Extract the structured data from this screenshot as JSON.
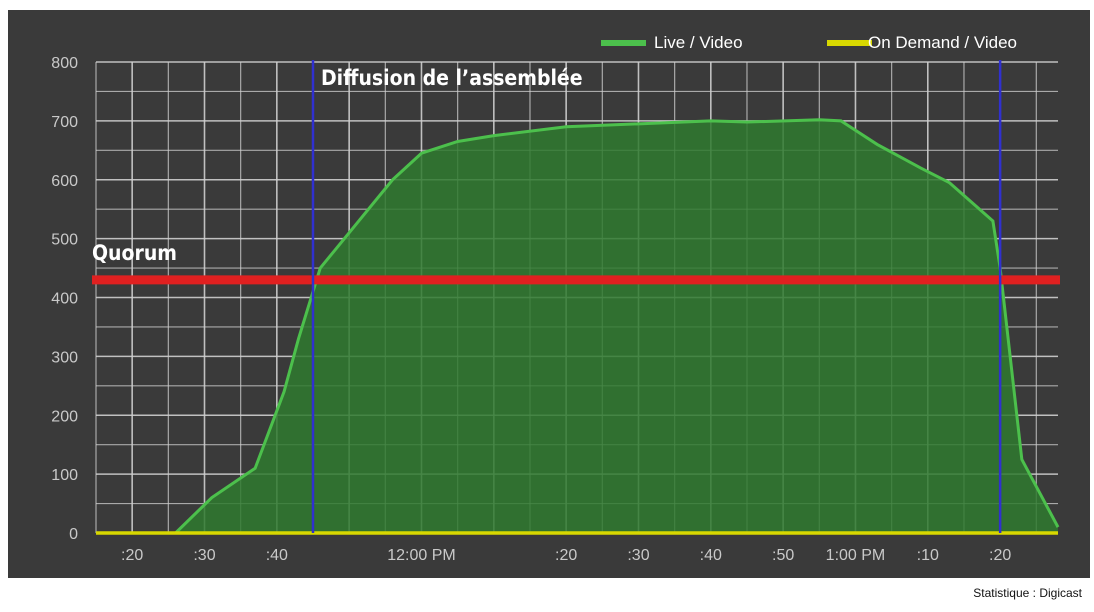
{
  "chart_data": {
    "type": "area",
    "title": "",
    "xlabel": "",
    "ylabel": "",
    "ylim": [
      0,
      800
    ],
    "y_ticks": [
      0,
      100,
      200,
      300,
      400,
      500,
      600,
      700,
      800
    ],
    "x_range": [
      "11:15",
      "13:28"
    ],
    "x_tick_labels": [
      {
        "time": "11:20",
        "label": ":20"
      },
      {
        "time": "11:30",
        "label": ":30"
      },
      {
        "time": "11:40",
        "label": ":40"
      },
      {
        "time": "12:00",
        "label": "12:00 PM"
      },
      {
        "time": "12:20",
        "label": ":20"
      },
      {
        "time": "12:30",
        "label": ":30"
      },
      {
        "time": "12:40",
        "label": ":40"
      },
      {
        "time": "12:50",
        "label": ":50"
      },
      {
        "time": "13:00",
        "label": "1:00 PM"
      },
      {
        "time": "13:10",
        "label": ":10"
      },
      {
        "time": "13:20",
        "label": ":20"
      }
    ],
    "grid": true,
    "legend_position": "top-right",
    "series": [
      {
        "name": "Live / Video",
        "color": "#4cc04c",
        "fill": "#2f7a2f",
        "points": [
          {
            "x": "11:15",
            "y": 0
          },
          {
            "x": "11:26",
            "y": 0
          },
          {
            "x": "11:31",
            "y": 60
          },
          {
            "x": "11:37",
            "y": 110
          },
          {
            "x": "11:41",
            "y": 240
          },
          {
            "x": "11:43",
            "y": 330
          },
          {
            "x": "11:46",
            "y": 450
          },
          {
            "x": "11:48",
            "y": 480
          },
          {
            "x": "11:52",
            "y": 540
          },
          {
            "x": "11:56",
            "y": 600
          },
          {
            "x": "12:00",
            "y": 645
          },
          {
            "x": "12:05",
            "y": 665
          },
          {
            "x": "12:10",
            "y": 675
          },
          {
            "x": "12:20",
            "y": 690
          },
          {
            "x": "12:30",
            "y": 695
          },
          {
            "x": "12:40",
            "y": 700
          },
          {
            "x": "12:45",
            "y": 698
          },
          {
            "x": "12:55",
            "y": 702
          },
          {
            "x": "12:58",
            "y": 700
          },
          {
            "x": "13:03",
            "y": 660
          },
          {
            "x": "13:09",
            "y": 620
          },
          {
            "x": "13:13",
            "y": 595
          },
          {
            "x": "13:19",
            "y": 530
          },
          {
            "x": "13:20",
            "y": 450
          },
          {
            "x": "13:23",
            "y": 125
          },
          {
            "x": "13:28",
            "y": 10
          }
        ]
      },
      {
        "name": "On Demand / Video",
        "color": "#d8d800",
        "points": [
          {
            "x": "11:15",
            "y": 0
          },
          {
            "x": "13:28",
            "y": 0
          }
        ]
      }
    ],
    "annotations": {
      "quorum": {
        "label": "Quorum",
        "y": 430,
        "color": "#e02020"
      },
      "broadcast": {
        "label": "Diffusion de l’assemblée",
        "start": "11:45",
        "end": "13:20",
        "color": "#3030d0"
      }
    }
  },
  "credit": "Statistique : Digicast",
  "colors": {
    "panel_bg": "#3a3a3a",
    "grid": "#cfcfcf",
    "tick_text": "#c9c9c9"
  }
}
